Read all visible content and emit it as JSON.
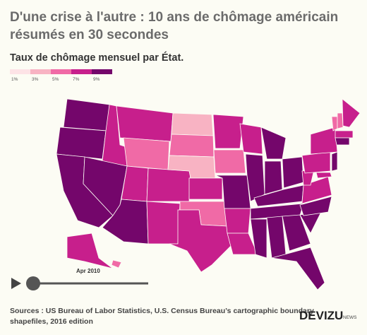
{
  "header": {
    "title_lines": [
      "D'une crise à l'autre : 10 ans de chômage américain",
      "résumés en 30 secondes"
    ],
    "subtitle": "Taux de chômage mensuel par État."
  },
  "map": {
    "legend": [
      {
        "value": 1,
        "label": "1%",
        "color": "#fde3e6"
      },
      {
        "value": 3,
        "label": "3%",
        "color": "#f8b3c3"
      },
      {
        "value": 5,
        "label": "5%",
        "color": "#f06aa6"
      },
      {
        "value": 7,
        "label": "7%",
        "color": "#c71f8c"
      },
      {
        "value": 9,
        "label": "9%",
        "color": "#74066b"
      }
    ],
    "values": [
      9.5,
      10.6,
      12.4,
      8.8,
      13.5,
      7,
      6.5,
      7.8,
      10,
      8.5,
      8,
      3.8,
      5,
      4.6,
      7,
      6.8,
      8.3,
      7.3,
      6.2,
      9.5,
      7.8,
      7,
      8.7,
      11,
      13.5,
      10.5,
      10.8,
      10.4,
      10,
      11,
      10.8,
      10.3,
      11.4,
      11.2,
      11,
      7.2,
      8.8,
      8.8,
      8.5,
      9.7,
      7.4,
      6.5,
      6.3,
      8.2,
      8.8,
      9.3,
      8.8,
      6.9
    ]
  },
  "slider": {
    "date": "Apr 2010"
  },
  "footer": {
    "sources_lines": [
      "Sources : US Bureau of Labor Statistics, U.S. Census Bureau’s cartographic boundary",
      "shapefiles, 2016 edition"
    ],
    "logo": "DEVIZU",
    "logo_sub": "NEWS"
  }
}
